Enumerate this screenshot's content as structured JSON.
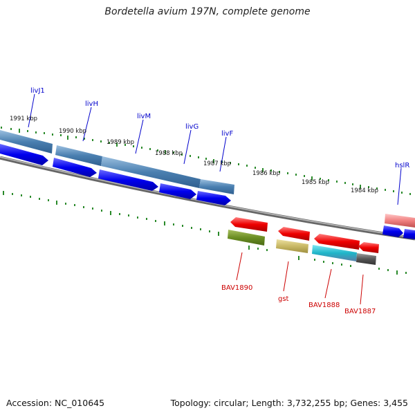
{
  "title": "Bordetella avium 197N, complete genome",
  "footer": {
    "accession": "Accession: NC_010645",
    "summary": "Topology: circular; Length: 3,732,255 bp; Genes: 3,455"
  },
  "ticks": [
    "1991 kbp",
    "1990 kbp",
    "1989 kbp",
    "1988 kbp",
    "1987 kbp",
    "1986 kbp",
    "1985 kbp",
    "1984 kbp"
  ],
  "forward_genes": [
    "livJ1",
    "livH",
    "livM",
    "livG",
    "livF",
    "hslR"
  ],
  "reverse_genes": [
    "BAV1890",
    "gst",
    "BAV1888",
    "BAV1887"
  ],
  "colors": {
    "forward_arrow": "#0000ee",
    "forward_band": "#4a7fb0",
    "reverse_arrow": "#ee0000",
    "forward_label": "#0000cc",
    "reverse_label": "#cc0000",
    "tick_marks": "#2a8a2a",
    "backbone": "#777777",
    "olive_feature": "#6b8e23",
    "khaki_feature": "#c8b865",
    "teal_feature": "#1fb5c8",
    "gray_feature": "#555555",
    "pink_feature": "#f08080"
  }
}
